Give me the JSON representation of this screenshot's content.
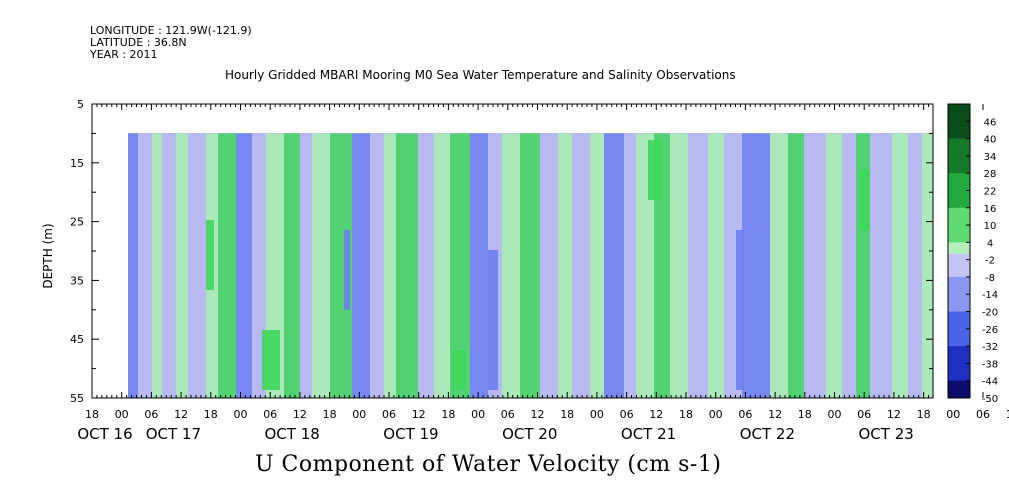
{
  "header": {
    "longitude": "LONGITUDE : 121.9W(-121.9)",
    "latitude": "LATITUDE : 36.8N",
    "year": "YEAR : 2011"
  },
  "chart_data": {
    "type": "heatmap",
    "title": "Hourly Gridded MBARI Mooring M0 Sea Water Temperature and Salinity Observations",
    "caption": "U Component of Water Velocity (cm s-1)",
    "ylabel": "DEPTH (m)",
    "ylim": [
      5,
      55
    ],
    "y_inverted": true,
    "y_ticks": [
      "5",
      "15",
      "25",
      "35",
      "45",
      "55"
    ],
    "data_depth_range": [
      10,
      55
    ],
    "x_range_hours": "Oct 16 18:00 to Oct 23 20:00, 2011",
    "x_tick_hours": [
      "18",
      "00",
      "06",
      "12",
      "18",
      "00",
      "06",
      "12",
      "18",
      "00",
      "06",
      "12",
      "18",
      "00",
      "06",
      "12",
      "18",
      "00",
      "06",
      "12",
      "18",
      "00",
      "06",
      "12",
      "18",
      "00",
      "06",
      "12",
      "18",
      "00",
      "06",
      "12",
      "18"
    ],
    "x_day_labels": [
      "OCT 16",
      "OCT 17",
      "OCT 18",
      "OCT 19",
      "OCT 20",
      "OCT 21",
      "OCT 22",
      "OCT 23"
    ],
    "colorbar_labels": [
      "46",
      "40",
      "34",
      "28",
      "22",
      "16",
      "10",
      "4",
      "-2",
      "-8",
      "-14",
      "-20",
      "-26",
      "-32",
      "-38",
      "-44",
      "-50"
    ],
    "colorbar_range": [
      -50,
      52
    ],
    "colors": {
      "strong_positive": "#0a4d1a",
      "positive": "#3fd65c",
      "weak_positive": "#a8f0b0",
      "weak_negative": "#b8b8f2",
      "negative": "#6b7ff0",
      "strong_negative": "#101080"
    }
  }
}
